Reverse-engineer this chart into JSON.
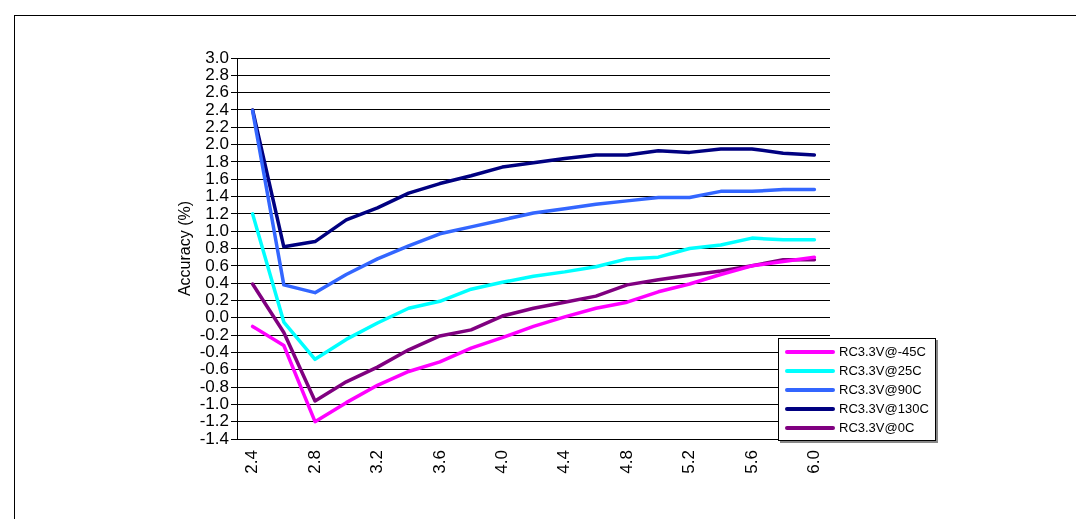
{
  "chart_data": {
    "type": "line",
    "ylabel": "Accuracy (%)",
    "categories": [
      "2.4",
      null,
      "2.8",
      null,
      "3.2",
      null,
      "3.6",
      null,
      "4.0",
      null,
      "4.4",
      null,
      "4.8",
      null,
      "5.2",
      null,
      "5.6",
      null,
      "6.0"
    ],
    "ylim": [
      -1.4,
      3.0
    ],
    "yticks": [
      {
        "value": -1.4,
        "label": "-1.4"
      },
      {
        "value": -1.2,
        "label": "-1.2"
      },
      {
        "value": -1.0,
        "label": "-1.0"
      },
      {
        "value": -0.8,
        "label": "-0.8"
      },
      {
        "value": -0.6,
        "label": "-0.6"
      },
      {
        "value": -0.4,
        "label": "-0.4"
      },
      {
        "value": -0.2,
        "label": "-0.2"
      },
      {
        "value": 0,
        "label": "0.0"
      },
      {
        "value": 0.2,
        "label": "0.2"
      },
      {
        "value": 0.4,
        "label": "0.4"
      },
      {
        "value": 0.6,
        "label": "0.6"
      },
      {
        "value": 0.8,
        "label": "0.8"
      },
      {
        "value": 1.0,
        "label": "1.0"
      },
      {
        "value": 1.2,
        "label": "1.2"
      },
      {
        "value": 1.4,
        "label": "1.4"
      },
      {
        "value": 1.6,
        "label": "1.6"
      },
      {
        "value": 1.8,
        "label": "1.8"
      },
      {
        "value": 2.0,
        "label": "2.0"
      },
      {
        "value": 2.2,
        "label": "2.2"
      },
      {
        "value": 2.4,
        "label": "2.4"
      },
      {
        "value": 2.6,
        "label": "2.6"
      },
      {
        "value": 2.8,
        "label": "2.8"
      },
      {
        "value": 3.0,
        "label": "3.0"
      }
    ],
    "series": [
      {
        "name": "RC3.3V@-45C",
        "color": "#ff00ff",
        "values": [
          -0.1,
          -0.32,
          -1.2,
          -0.98,
          -0.78,
          -0.62,
          -0.51,
          -0.35,
          -0.23,
          -0.1,
          0.01,
          0.11,
          0.18,
          0.3,
          0.39,
          0.5,
          0.6,
          0.65,
          0.7
        ]
      },
      {
        "name": "RC3.3V@25C",
        "color": "#00ffff",
        "values": [
          1.2,
          -0.05,
          -0.48,
          -0.25,
          -0.06,
          0.11,
          0.19,
          0.33,
          0.41,
          0.48,
          0.53,
          0.59,
          0.68,
          0.7,
          0.8,
          0.84,
          0.92,
          0.9,
          0.9
        ]
      },
      {
        "name": "RC3.3V@90C",
        "color": "#3366ff",
        "values": [
          2.39,
          0.38,
          0.29,
          0.5,
          0.68,
          0.83,
          0.97,
          1.05,
          1.13,
          1.21,
          1.26,
          1.31,
          1.35,
          1.39,
          1.39,
          1.46,
          1.46,
          1.48,
          1.48
        ]
      },
      {
        "name": "RC3.3V@130C",
        "color": "#000080",
        "values": [
          2.4,
          0.82,
          0.88,
          1.13,
          1.27,
          1.44,
          1.55,
          1.64,
          1.74,
          1.79,
          1.84,
          1.88,
          1.88,
          1.93,
          1.91,
          1.95,
          1.95,
          1.9,
          1.88
        ]
      },
      {
        "name": "RC3.3V@0C",
        "color": "#800080",
        "values": [
          0.39,
          -0.17,
          -0.96,
          -0.74,
          -0.57,
          -0.37,
          -0.21,
          -0.14,
          0.02,
          0.11,
          0.18,
          0.25,
          0.38,
          0.44,
          0.49,
          0.54,
          0.6,
          0.67,
          0.67
        ]
      }
    ],
    "grid": "y",
    "legend": "bottom right",
    "marker": "none",
    "line_style": "solid"
  }
}
